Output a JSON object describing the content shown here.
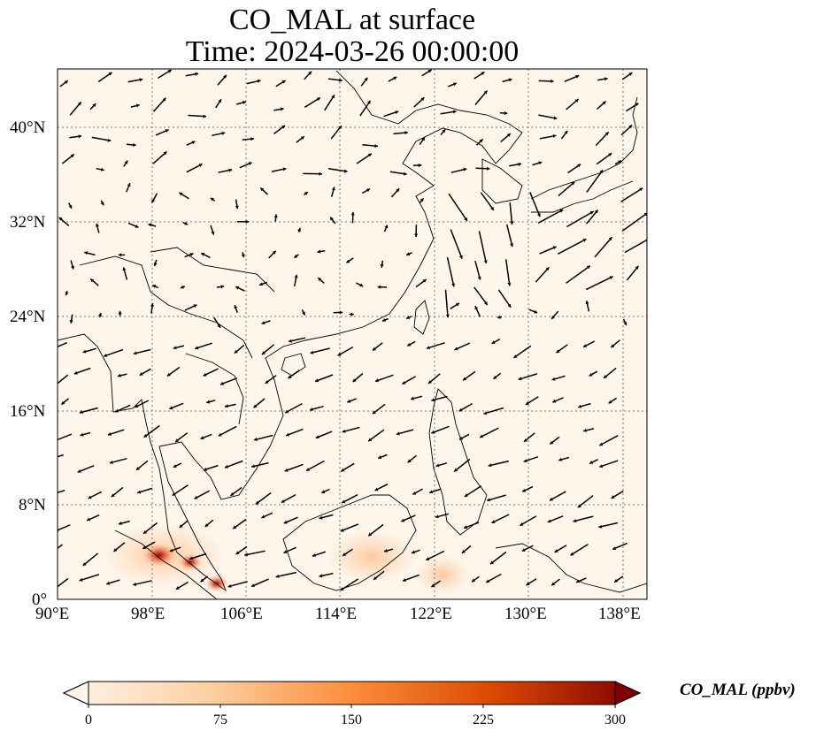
{
  "title_line1": "CO_MAL at surface",
  "title_line2": "Time: 2024-03-26 00:00:00",
  "lon_ticks": [
    "90°E",
    "98°E",
    "106°E",
    "114°E",
    "122°E",
    "130°E",
    "138°E"
  ],
  "lat_ticks": [
    "0°",
    "8°N",
    "16°N",
    "24°N",
    "32°N",
    "40°N"
  ],
  "colorbar": {
    "label": "CO_MAL (ppbv)",
    "ticks": [
      "0",
      "75",
      "150",
      "225",
      "300"
    ],
    "min": 0,
    "max": 300,
    "extend": "both",
    "colors": [
      "#fff5eb",
      "#fdd0a2",
      "#fd8d3c",
      "#d94801",
      "#7f0000"
    ]
  },
  "extent": {
    "lon": [
      90,
      140
    ],
    "lat": [
      0,
      45
    ]
  },
  "gridlines": "dotted",
  "colors": {
    "ocean_land_background": "#fff5eb",
    "coastline": "#000000"
  }
}
